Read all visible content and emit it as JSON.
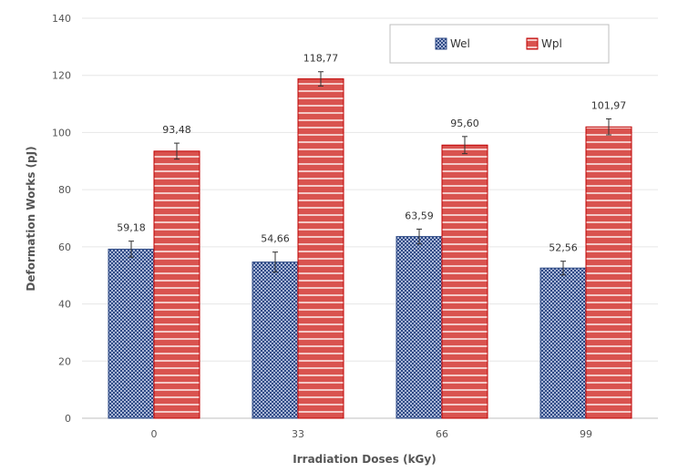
{
  "chart_data": {
    "type": "bar",
    "title": "",
    "xlabel": "Irradiation Doses (kGy)",
    "ylabel": "Deformation Works (pJ)",
    "categories": [
      "0",
      "33",
      "66",
      "99"
    ],
    "ylim": [
      0,
      140
    ],
    "yticks": [
      "0",
      "20",
      "40",
      "60",
      "80",
      "100",
      "120",
      "140"
    ],
    "grid": true,
    "legend_position": "top-right",
    "series": [
      {
        "name": "Wel",
        "color": "#2e4a86",
        "values": [
          59.18,
          54.66,
          63.59,
          52.56
        ],
        "errors": [
          2.8,
          3.5,
          2.6,
          2.4
        ],
        "labels": [
          "59,18",
          "54,66",
          "63,59",
          "52,56"
        ]
      },
      {
        "name": "Wpl",
        "color": "#d9534f",
        "values": [
          93.48,
          118.77,
          95.6,
          101.97
        ],
        "errors": [
          2.8,
          2.5,
          3.0,
          2.8
        ],
        "labels": [
          "93,48",
          "118,77",
          "95,60",
          "101,97"
        ]
      }
    ]
  }
}
